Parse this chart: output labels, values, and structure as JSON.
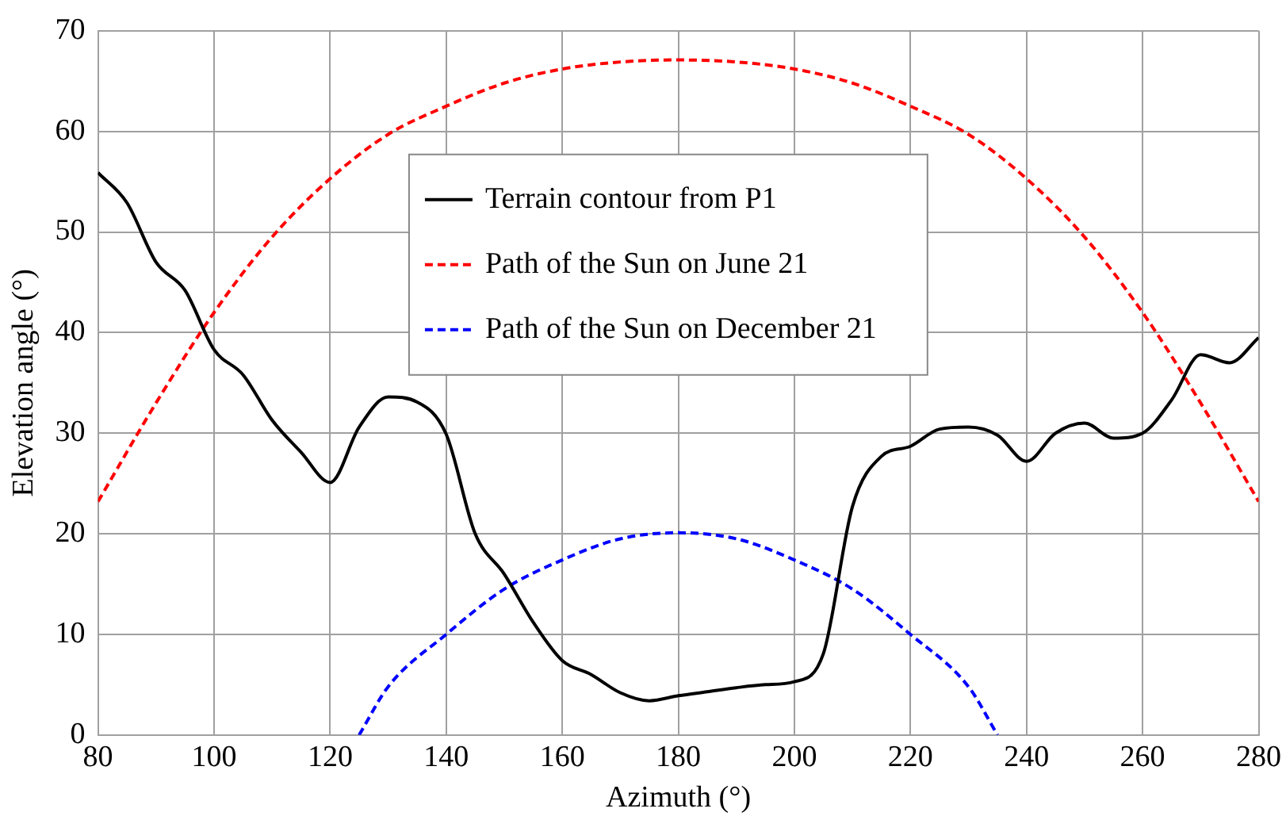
{
  "chart_data": {
    "type": "line",
    "xlabel": "Azimuth (°)",
    "ylabel": "Elevation angle (°)",
    "xlim": [
      80,
      280
    ],
    "xticks": [
      80,
      100,
      120,
      140,
      160,
      180,
      200,
      220,
      240,
      260,
      280
    ],
    "ylim": [
      0,
      70
    ],
    "yticks": [
      0,
      10,
      20,
      30,
      40,
      50,
      60,
      70
    ],
    "grid": true,
    "legend": "top",
    "marker": "none",
    "series": [
      {
        "name": "Terrain contour from P1",
        "color": "#000000",
        "line_style": "solid",
        "x": [
          80,
          85,
          90,
          95,
          100,
          105,
          110,
          115,
          120,
          125,
          130,
          135,
          140,
          145,
          150,
          155,
          160,
          165,
          170,
          175,
          180,
          185,
          190,
          195,
          200,
          205,
          210,
          215,
          220,
          225,
          230,
          235,
          240,
          245,
          250,
          255,
          260,
          265,
          270,
          275,
          280
        ],
        "values": [
          55.9,
          52.9,
          47,
          44.2,
          38.3,
          35.8,
          31.3,
          28.1,
          25.1,
          30.6,
          33.6,
          33.1,
          29.9,
          20,
          16,
          11.2,
          7.4,
          6,
          4.2,
          3.4,
          3.9,
          4.3,
          4.7,
          5,
          5.3,
          8.1,
          22.7,
          27.7,
          28.7,
          30.4,
          30.6,
          29.8,
          27.2,
          30,
          31,
          29.5,
          30,
          33.3,
          37.8,
          37,
          39.5
        ]
      },
      {
        "name": "Path of the Sun on June 21",
        "color": "#ff0000",
        "line_style": "dashed",
        "x": [
          80,
          90,
          100,
          110,
          120,
          130,
          140,
          150,
          160,
          170,
          180,
          190,
          200,
          210,
          220,
          230,
          240,
          250,
          260,
          270,
          280
        ],
        "values": [
          23.2,
          33,
          42,
          49.5,
          55.3,
          59.7,
          62.5,
          64.8,
          66.2,
          66.9,
          67.1,
          66.9,
          66.2,
          64.8,
          62.5,
          59.7,
          55.3,
          49.5,
          42,
          33,
          23.2
        ]
      },
      {
        "name": "Path of the Sun on December 21",
        "color": "#0000ff",
        "line_style": "dashed",
        "x": [
          125,
          130,
          140,
          150,
          160,
          170,
          180,
          190,
          200,
          210,
          220,
          230,
          235
        ],
        "values": [
          0,
          4.8,
          10,
          14.5,
          17.4,
          19.5,
          20.1,
          19.5,
          17.4,
          14.5,
          10,
          4.8,
          0
        ]
      }
    ]
  }
}
